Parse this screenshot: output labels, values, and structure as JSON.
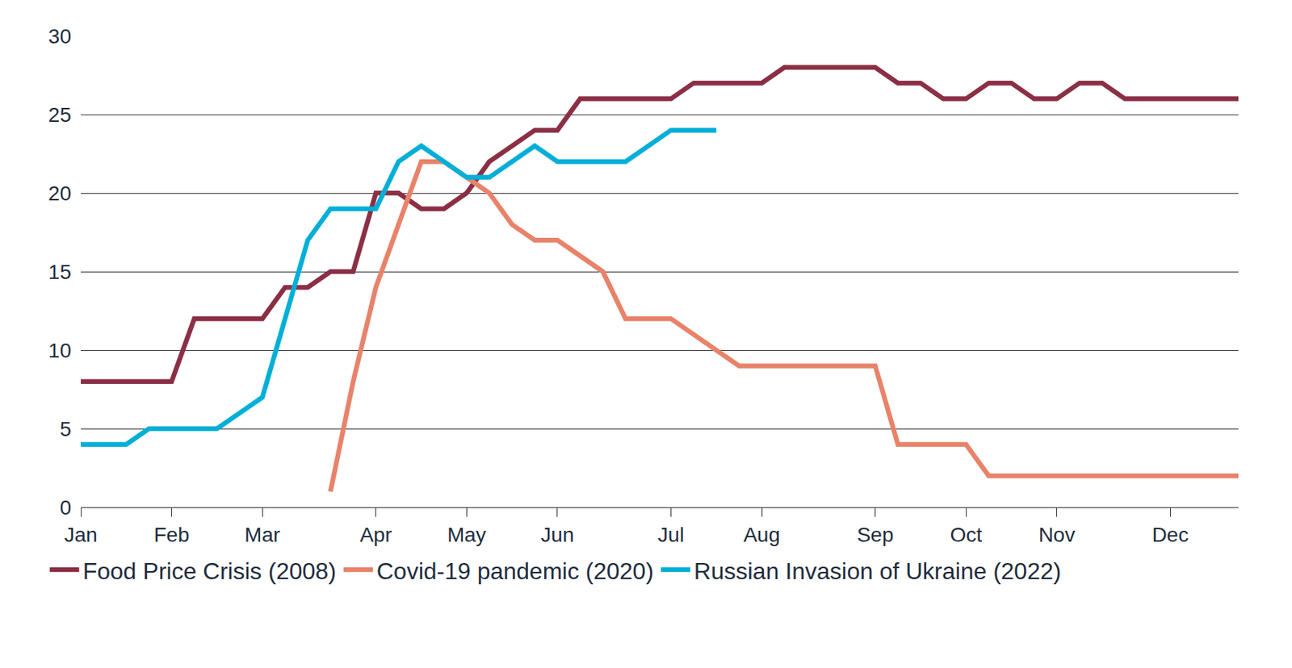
{
  "chart_data": {
    "type": "line",
    "categories": [
      "Jan",
      null,
      null,
      null,
      "Feb",
      null,
      null,
      null,
      "Mar",
      null,
      null,
      null,
      null,
      "Apr",
      null,
      null,
      null,
      "May",
      null,
      null,
      null,
      "Jun",
      null,
      null,
      null,
      null,
      "Jul",
      null,
      null,
      null,
      "Aug",
      null,
      null,
      null,
      null,
      "Sep",
      null,
      null,
      null,
      "Oct",
      null,
      null,
      null,
      "Nov",
      null,
      null,
      null,
      null,
      "Dec",
      null,
      null,
      null
    ],
    "series": [
      {
        "name": "Food Price Crisis (2008)",
        "color": "#8B2F45",
        "values": [
          8,
          8,
          8,
          8,
          8,
          12,
          12,
          12,
          12,
          14,
          14,
          15,
          15,
          20,
          20,
          19,
          19,
          20,
          22,
          23,
          24,
          24,
          26,
          26,
          26,
          26,
          26,
          27,
          27,
          27,
          27,
          28,
          28,
          28,
          28,
          28,
          27,
          27,
          26,
          26,
          27,
          27,
          26,
          26,
          27,
          27,
          26,
          26,
          26,
          26,
          26,
          26
        ]
      },
      {
        "name": "Covid-19 pandemic (2020)",
        "color": "#E8836A",
        "values": [
          null,
          null,
          null,
          null,
          null,
          null,
          null,
          null,
          null,
          null,
          null,
          1,
          8,
          14,
          18,
          22,
          22,
          21,
          20,
          18,
          17,
          17,
          16,
          15,
          12,
          12,
          12,
          11,
          10,
          9,
          9,
          9,
          9,
          9,
          9,
          9,
          4,
          4,
          4,
          4,
          2,
          2,
          2,
          2,
          2,
          2,
          2,
          2,
          2,
          2,
          2,
          2
        ]
      },
      {
        "name": "Russian Invasion of Ukraine (2022)",
        "color": "#00AFD7",
        "values": [
          4,
          4,
          4,
          5,
          5,
          5,
          5,
          6,
          7,
          12,
          17,
          19,
          19,
          19,
          22,
          23,
          22,
          21,
          21,
          22,
          23,
          22,
          22,
          22,
          22,
          23,
          24,
          24,
          24,
          null,
          null,
          null,
          null,
          null,
          null,
          null,
          null,
          null,
          null,
          null,
          null,
          null,
          null,
          null,
          null,
          null,
          null,
          null,
          null,
          null,
          null,
          null
        ]
      }
    ],
    "ylim": [
      0,
      30
    ],
    "yticks": [
      0,
      5,
      10,
      15,
      20,
      25,
      30
    ],
    "grid": true,
    "legend": "bottom"
  }
}
